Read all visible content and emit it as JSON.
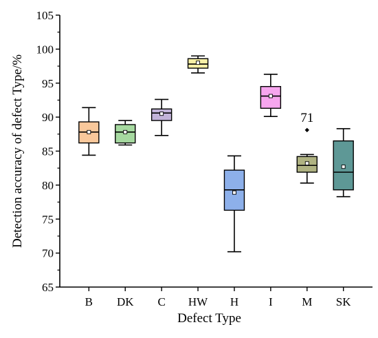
{
  "chart_data": {
    "type": "box",
    "title": "",
    "xlabel": "Defect Type",
    "ylabel": "Detection accuracy of defect Type/%",
    "ylim": [
      65,
      105
    ],
    "yticks": [
      65,
      70,
      75,
      80,
      85,
      90,
      95,
      100,
      105
    ],
    "grid": false,
    "legend": "none",
    "categories": [
      "B",
      "DK",
      "C",
      "HW",
      "H",
      "I",
      "M",
      "SK"
    ],
    "boxes": [
      {
        "category": "B",
        "color": "#f9c89b",
        "whisker_low": 84.4,
        "q1": 86.2,
        "median": 87.8,
        "q3": 89.3,
        "whisker_high": 91.4,
        "mean": 87.8,
        "outliers": []
      },
      {
        "category": "DK",
        "color": "#a6d9a0",
        "whisker_low": 85.9,
        "q1": 86.2,
        "median": 87.8,
        "q3": 88.9,
        "whisker_high": 89.5,
        "mean": 87.8,
        "outliers": []
      },
      {
        "category": "C",
        "color": "#c2b3d9",
        "whisker_low": 87.3,
        "q1": 89.5,
        "median": 90.6,
        "q3": 91.2,
        "whisker_high": 92.6,
        "mean": 90.5,
        "outliers": []
      },
      {
        "category": "HW",
        "color": "#f6efa6",
        "whisker_low": 96.5,
        "q1": 97.2,
        "median": 97.8,
        "q3": 98.6,
        "whisker_high": 99.0,
        "mean": 98.0,
        "outliers": []
      },
      {
        "category": "H",
        "color": "#8db0ea",
        "whisker_low": 70.2,
        "q1": 76.3,
        "median": 79.3,
        "q3": 82.2,
        "whisker_high": 84.3,
        "mean": 78.9,
        "outliers": []
      },
      {
        "category": "I",
        "color": "#f7a6ef",
        "whisker_low": 90.1,
        "q1": 91.3,
        "median": 93.1,
        "q3": 94.5,
        "whisker_high": 96.3,
        "mean": 93.1,
        "outliers": []
      },
      {
        "category": "M",
        "color": "#b0b382",
        "whisker_low": 80.3,
        "q1": 81.9,
        "median": 82.9,
        "q3": 84.2,
        "whisker_high": 84.5,
        "mean": 83.2,
        "outliers": [
          88.1
        ]
      },
      {
        "category": "SK",
        "color": "#5e9896",
        "whisker_low": 78.3,
        "q1": 79.3,
        "median": 81.9,
        "q3": 86.5,
        "whisker_high": 88.3,
        "mean": 82.7,
        "outliers": []
      }
    ],
    "annotations": [
      {
        "text": "71",
        "category": "M",
        "y": 90.0
      }
    ]
  }
}
